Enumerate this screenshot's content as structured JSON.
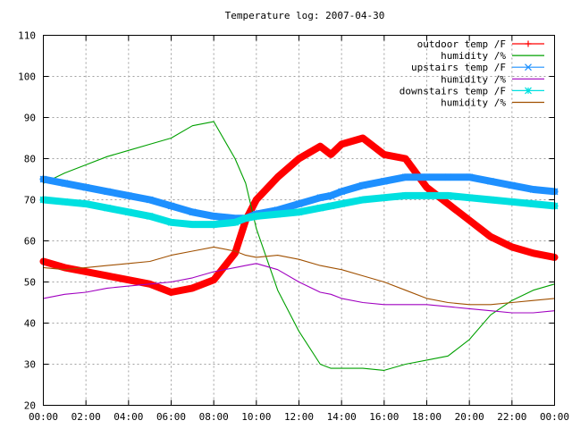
{
  "chart_data": {
    "type": "line",
    "title": "Temperature log: 2007-04-30",
    "xlabel": "",
    "ylabel": "",
    "xlim": [
      0,
      24
    ],
    "ylim": [
      20,
      110
    ],
    "grid": true,
    "legend_position": "top-right",
    "x_ticks": [
      "00:00",
      "02:00",
      "04:00",
      "06:00",
      "08:00",
      "10:00",
      "12:00",
      "14:00",
      "16:00",
      "18:00",
      "20:00",
      "22:00",
      "00:00"
    ],
    "y_ticks": [
      20,
      30,
      40,
      50,
      60,
      70,
      80,
      90,
      100,
      110
    ],
    "x_hours": [
      0,
      1,
      2,
      3,
      4,
      5,
      6,
      7,
      8,
      9,
      9.5,
      10,
      11,
      12,
      13,
      13.5,
      14,
      15,
      16,
      17,
      18,
      19,
      20,
      21,
      22,
      23,
      24
    ],
    "series": [
      {
        "name": "outdoor temp /F",
        "color": "#ff0000",
        "marker": "plus",
        "values": [
          55,
          53.5,
          52.5,
          51.5,
          50.5,
          49.5,
          47.5,
          48.5,
          50.5,
          57,
          65,
          70,
          75.5,
          80,
          83,
          81,
          83.5,
          85,
          81,
          80,
          73,
          69,
          65,
          61,
          58.5,
          57,
          56
        ]
      },
      {
        "name": "humidity /%",
        "color": "#00a000",
        "marker": "none",
        "values": [
          74,
          76.5,
          78.5,
          80.5,
          82,
          83.5,
          85,
          88,
          89,
          80,
          74,
          63,
          48,
          38,
          30,
          29,
          29,
          29,
          28.5,
          30,
          31,
          32,
          36,
          42,
          45.5,
          48,
          49.5
        ]
      },
      {
        "name": "upstairs temp /F",
        "color": "#1e90ff",
        "marker": "x",
        "values": [
          75,
          74,
          73,
          72,
          71,
          70,
          68.5,
          67,
          66,
          65.5,
          65.5,
          66.5,
          67.5,
          69,
          70.5,
          71,
          72,
          73.5,
          74.5,
          75.5,
          75.5,
          75.5,
          75.5,
          74.5,
          73.5,
          72.5,
          72
        ]
      },
      {
        "name": "humidity /%",
        "color": "#a000c0",
        "marker": "none",
        "values": [
          46,
          47,
          47.5,
          48.5,
          49,
          49.5,
          50,
          51,
          52.5,
          53.5,
          54,
          54.5,
          53,
          50,
          47.5,
          47,
          46,
          45,
          44.5,
          44.5,
          44.5,
          44,
          43.5,
          43,
          42.5,
          42.5,
          43
        ]
      },
      {
        "name": "downstairs temp /F",
        "color": "#00e0e0",
        "marker": "star",
        "values": [
          70,
          69.5,
          69,
          68,
          67,
          66,
          64.5,
          64,
          64,
          64.5,
          65.5,
          66,
          66.5,
          67,
          68,
          68.5,
          69,
          70,
          70.5,
          71,
          71,
          71,
          70.5,
          70,
          69.5,
          69,
          68.5
        ]
      },
      {
        "name": "humidity /%",
        "color": "#a05000",
        "marker": "none",
        "values": [
          53.5,
          53,
          53.5,
          54,
          54.5,
          55,
          56.5,
          57.5,
          58.5,
          57.5,
          56.5,
          56,
          56.5,
          55.5,
          54,
          53.5,
          53,
          51.5,
          50,
          48,
          46,
          45,
          44.5,
          44.5,
          45,
          45.5,
          46
        ]
      }
    ]
  }
}
